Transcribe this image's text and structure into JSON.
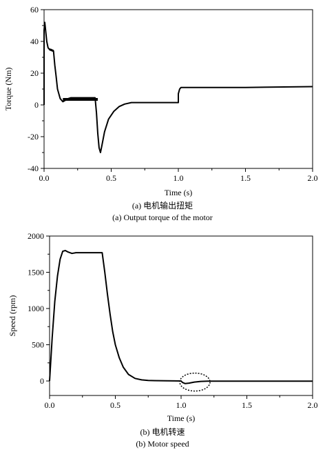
{
  "chart_data": [
    {
      "type": "line",
      "xlabel": "Time (s)",
      "ylabel": "Torque (Nm)",
      "xlim": [
        0.0,
        2.0
      ],
      "ylim": [
        -40,
        60
      ],
      "x_ticks": [
        0.0,
        0.5,
        1.0,
        1.5,
        2.0
      ],
      "x_tick_labels": [
        "0.0",
        "0.5",
        "1.0",
        "1.5",
        "2.0"
      ],
      "y_ticks": [
        -40,
        -20,
        0,
        20,
        40,
        60
      ],
      "y_tick_labels": [
        "-40",
        "-20",
        "0",
        "20",
        "40",
        "60"
      ],
      "caption_cn": "(a) 电机输出扭矩",
      "caption_en": "(a) Output torque of the motor",
      "grid": false,
      "series": [
        {
          "x": [
            0.0,
            0.0,
            0.005,
            0.01,
            0.02,
            0.03,
            0.04,
            0.05,
            0.07,
            0.08,
            0.09,
            0.1,
            0.12,
            0.14,
            0.16,
            0.18,
            0.2,
            0.3,
            0.35,
            0.38,
            0.39,
            0.4,
            0.41,
            0.42,
            0.43,
            0.45,
            0.48,
            0.52,
            0.56,
            0.6,
            0.65,
            0.8,
            0.9,
            1.0,
            1.0,
            1.01,
            1.02,
            1.05,
            1.2,
            1.5,
            2.0
          ],
          "y": [
            0,
            47,
            52,
            48,
            40,
            36,
            35,
            35,
            34,
            25,
            18,
            10,
            4,
            2,
            3,
            4,
            4.5,
            4.5,
            4.5,
            4.5,
            -5,
            -18,
            -27,
            -30,
            -26,
            -17,
            -9,
            -4,
            -1,
            0.5,
            1.5,
            1.5,
            1.5,
            1.5,
            7,
            10,
            11,
            11,
            11,
            11,
            11.5
          ]
        }
      ]
    },
    {
      "type": "line",
      "xlabel": "Time (s)",
      "ylabel": "Speed (rpm)",
      "xlim": [
        0.0,
        2.0
      ],
      "ylim": [
        -200,
        2000
      ],
      "x_ticks": [
        0.0,
        0.5,
        1.0,
        1.5,
        2.0
      ],
      "x_tick_labels": [
        "0.0",
        "0.5",
        "1.0",
        "1.5",
        "2.0"
      ],
      "y_ticks": [
        0,
        500,
        1000,
        1500,
        2000
      ],
      "y_tick_labels": [
        "0",
        "500",
        "1000",
        "1500",
        "2000"
      ],
      "caption_cn": "(b) 电机转速",
      "caption_en": "(b) Motor speed",
      "grid": false,
      "series": [
        {
          "x": [
            0.0,
            0.01,
            0.02,
            0.04,
            0.06,
            0.08,
            0.1,
            0.12,
            0.14,
            0.17,
            0.2,
            0.25,
            0.3,
            0.35,
            0.4,
            0.42,
            0.44,
            0.46,
            0.48,
            0.5,
            0.53,
            0.56,
            0.6,
            0.65,
            0.7,
            0.75,
            0.8,
            0.9,
            1.0,
            1.01,
            1.03,
            1.06,
            1.1,
            1.15,
            1.2,
            1.3,
            1.5,
            2.0
          ],
          "y": [
            0,
            300,
            600,
            1100,
            1450,
            1680,
            1790,
            1800,
            1780,
            1760,
            1770,
            1770,
            1770,
            1770,
            1770,
            1500,
            1200,
            920,
            680,
            500,
            320,
            190,
            90,
            35,
            15,
            8,
            5,
            3,
            0,
            -20,
            -35,
            -30,
            -15,
            -6,
            -3,
            -3,
            -3,
            -3
          ]
        }
      ],
      "annotation": "dotted-ellipse"
    }
  ]
}
